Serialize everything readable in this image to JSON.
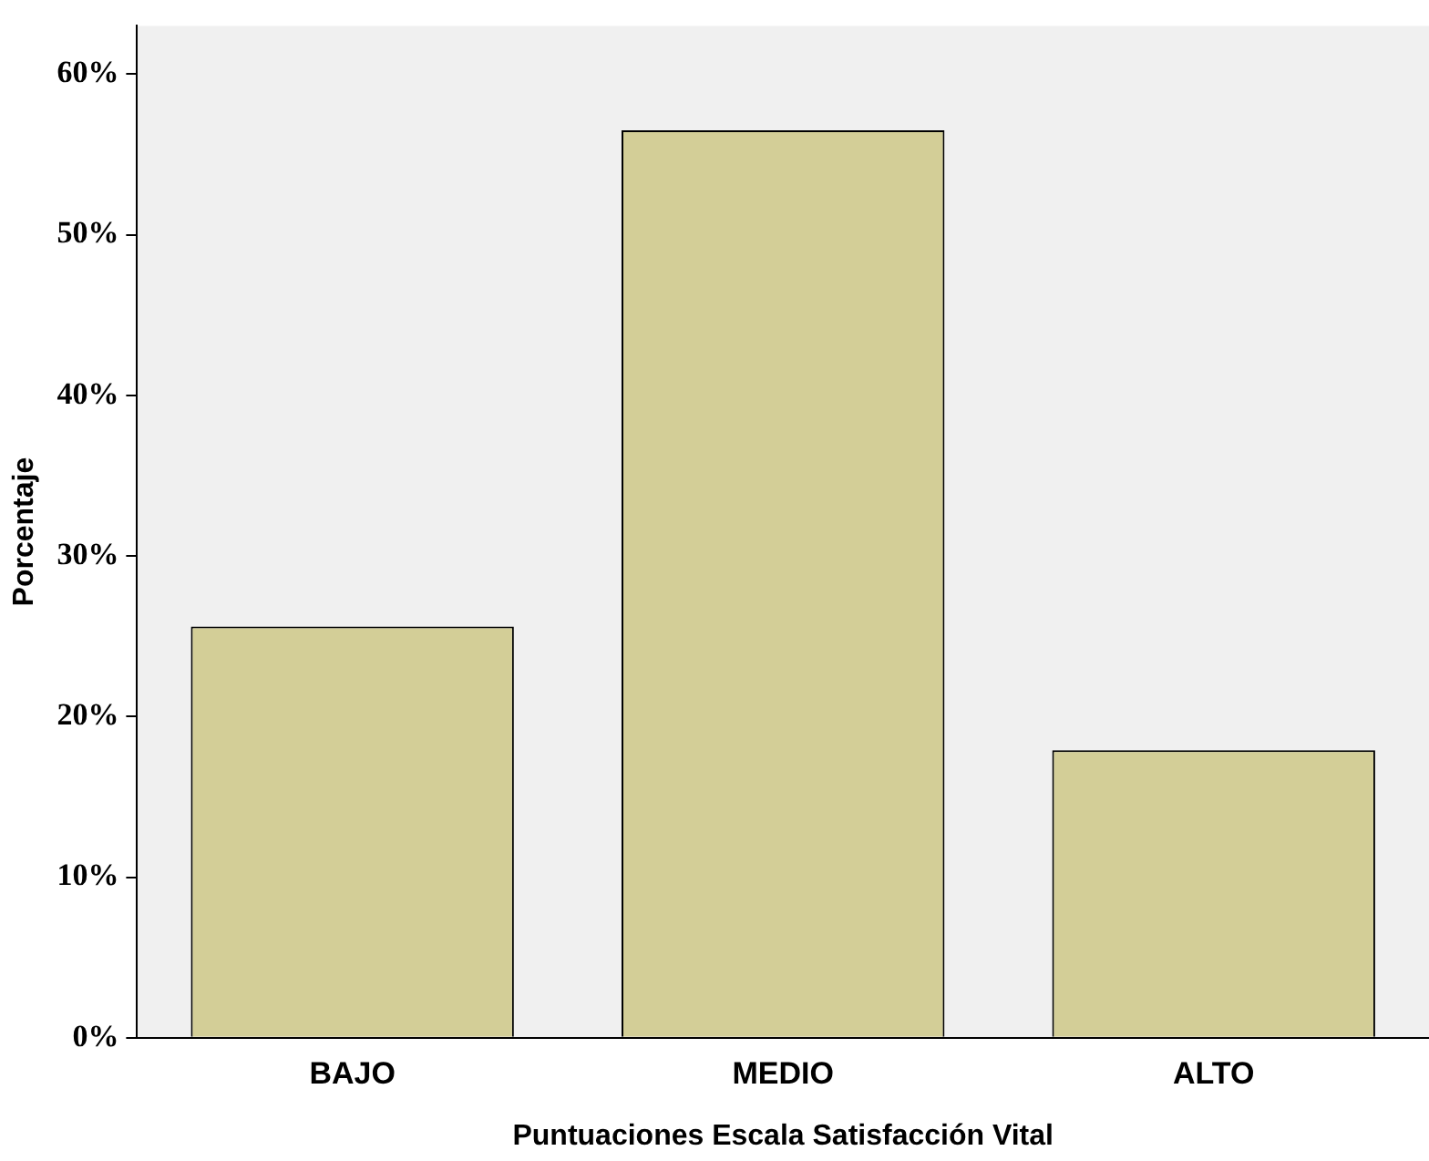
{
  "chart_data": {
    "type": "bar",
    "xlabel": "Puntuaciones Escala Satisfacción Vital",
    "ylabel": "Porcentaje",
    "categories": [
      "BAJO",
      "MEDIO",
      "ALTO"
    ],
    "values": [
      25.6,
      56.5,
      17.9
    ],
    "color": "#d3ce97",
    "ylim": [
      0,
      63
    ],
    "yticks": [
      {
        "value": 0,
        "label": "0%"
      },
      {
        "value": 10,
        "label": "10%"
      },
      {
        "value": 20,
        "label": "20%"
      },
      {
        "value": 30,
        "label": "30%"
      },
      {
        "value": 40,
        "label": "40%"
      },
      {
        "value": 50,
        "label": "50%"
      },
      {
        "value": 60,
        "label": "60%"
      }
    ],
    "grid": false,
    "legend": false
  }
}
